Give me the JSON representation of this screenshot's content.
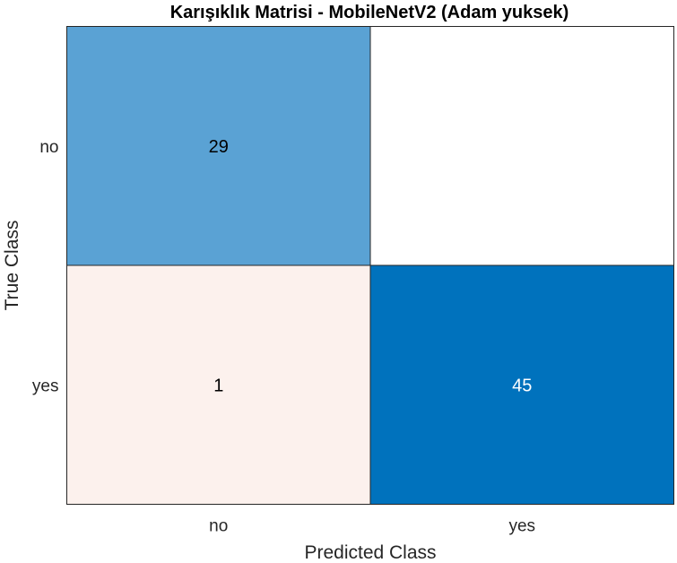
{
  "chart_data": {
    "type": "heatmap",
    "title": "Karışıklık Matrisi - MobileNetV2 (Adam yuksek)",
    "xlabel": "Predicted Class",
    "ylabel": "True Class",
    "x_categories": [
      "no",
      "yes"
    ],
    "y_categories": [
      "no",
      "yes"
    ],
    "matrix": [
      [
        29,
        0
      ],
      [
        1,
        45
      ]
    ],
    "display_values": [
      [
        "29",
        ""
      ],
      [
        "1",
        "45"
      ]
    ],
    "cell_colors": [
      [
        "#5aa2d4",
        "#ffffff"
      ],
      [
        "#fcf1ed",
        "#0072bd"
      ]
    ],
    "cell_text_colors": [
      [
        "#000000",
        "#000000"
      ],
      [
        "#000000",
        "#ffffff"
      ]
    ],
    "grid": false
  }
}
